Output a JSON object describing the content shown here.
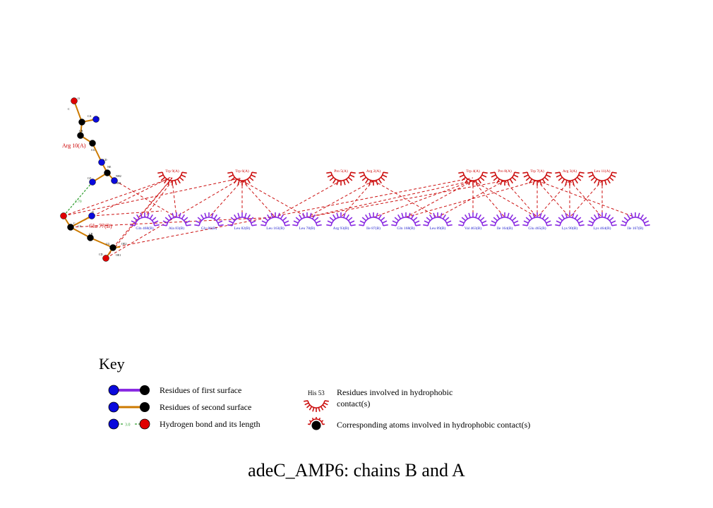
{
  "title": "adeC_AMP6: chains B and A",
  "colors": {
    "hydrophobic_a": "#cc1111",
    "hydrophobic_b": "#8a2be2",
    "label_a": "#cc0000",
    "label_b": "#1a1acc",
    "bond_first": "#8a2be2",
    "bond_second": "#cc7a00",
    "hbond": "#2e9e2e",
    "atom_n": "#0a0adc",
    "atom_o": "#e00000",
    "atom_c": "#000000"
  },
  "ligands": [
    {
      "name": "Arg 10(A)",
      "chain": "A"
    },
    {
      "name": "Glu 77(B)",
      "chain": "B"
    }
  ],
  "hbond": {
    "length": "2.70"
  },
  "atom_labels": {
    "arg": [
      "O",
      "C",
      "CA",
      "N",
      "CB",
      "CG",
      "CD",
      "NE",
      "CZ",
      "NH2",
      "NH1"
    ],
    "glu": [
      "N",
      "C",
      "CA",
      "CB",
      "CG",
      "CD",
      "OE2",
      "OE1"
    ]
  },
  "residues_chain_a": [
    "Trp 9(A)",
    "Trp 6(A)",
    "Pro 5(A)",
    "Arg 2(A)",
    "Trp 4(A)",
    "Pro 8(A)",
    "Trp 7(A)",
    "Arg 3(A)",
    "Leu 11(A)"
  ],
  "residues_chain_b": [
    "Gln 468(B)",
    "Ala 83(B)",
    "Gly 86(B)",
    "Leu 82(B)",
    "Leu 163(B)",
    "Leu 78(B)",
    "Arg 93(B)",
    "Ile 87(B)",
    "Gln 168(B)",
    "Leu 89(B)",
    "Val 463(B)",
    "Ile 164(B)",
    "Glu 465(B)",
    "Lys 90(B)",
    "Lys 464(B)",
    "Ile 167(B)"
  ],
  "key": {
    "title": "Key",
    "first_surface": "Residues of first surface",
    "second_surface": "Residues of second surface",
    "hbond": "Hydrogen bond and its length",
    "hbond_len": "3.0",
    "example_residue": "His 53",
    "hydrophobic_line1": "Residues involved in hydrophobic",
    "hydrophobic_line2": "contact(s)",
    "corresponding": "Corresponding atoms involved in hydrophobic contact(s)"
  }
}
